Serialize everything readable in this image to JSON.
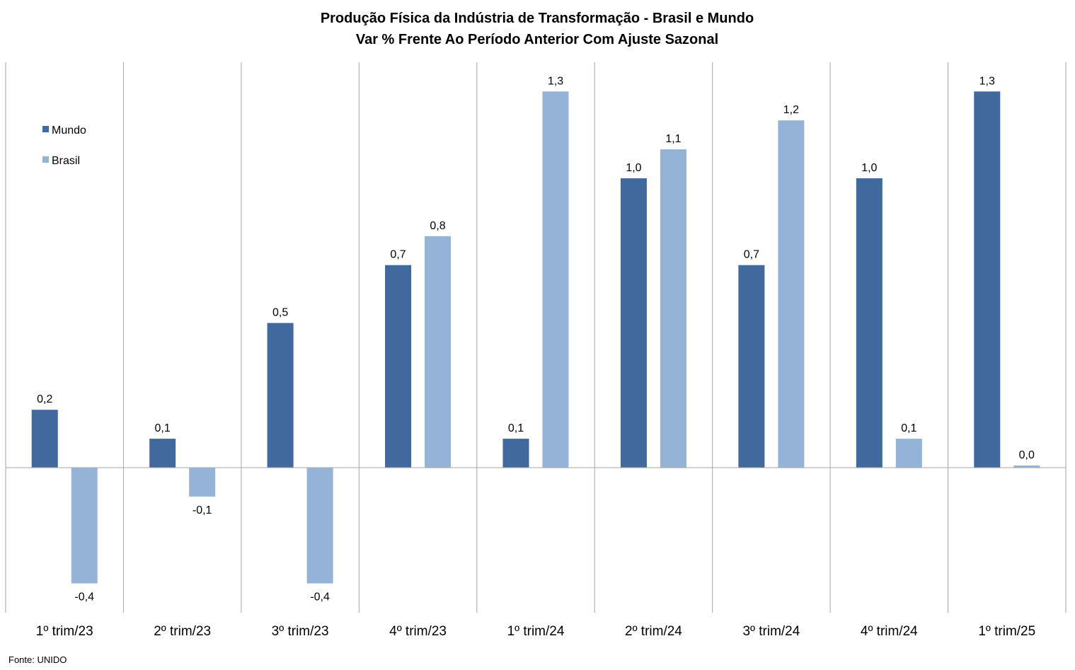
{
  "chart_data": {
    "type": "bar",
    "title": "Produção Física da Indústria de Transformação - Brasil e Mundo",
    "subtitle": "Var % Frente Ao Período Anterior Com Ajuste Sazonal",
    "categories": [
      "1º trim/23",
      "2º trim/23",
      "3º trim/23",
      "4º trim/23",
      "1º trim/24",
      "2º trim/24",
      "3º trim/24",
      "4º trim/24",
      "1º trim/25"
    ],
    "series": [
      {
        "name": "Mundo",
        "color": "#41699e",
        "values": [
          0.2,
          0.1,
          0.5,
          0.7,
          0.1,
          1.0,
          0.7,
          1.0,
          1.3
        ],
        "labels": [
          "0,2",
          "0,1",
          "0,5",
          "0,7",
          "0,1",
          "1,0",
          "0,7",
          "1,0",
          "1,3"
        ]
      },
      {
        "name": "Brasil",
        "color": "#95b3d7",
        "values": [
          -0.4,
          -0.1,
          -0.4,
          0.8,
          1.3,
          1.1,
          1.2,
          0.1,
          0.0
        ],
        "labels": [
          "-0,4",
          "-0,1",
          "-0,4",
          "0,8",
          "1,3",
          "1,1",
          "1,2",
          "0,1",
          "0,0"
        ]
      }
    ],
    "legend_position": "top-left",
    "grid": "vertical separators between categories",
    "ylim": [
      -0.5,
      1.4
    ]
  },
  "source": "Fonte: UNIDO"
}
